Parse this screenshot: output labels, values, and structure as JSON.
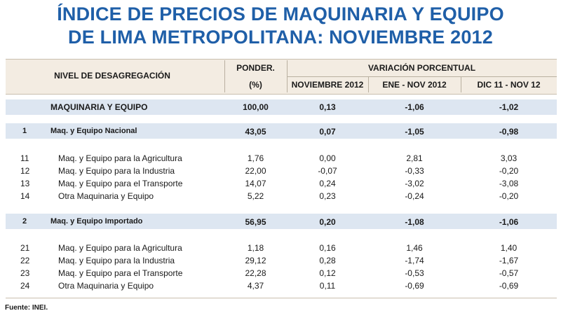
{
  "title": {
    "line1": "ÍNDICE DE PRECIOS DE MAQUINARIA Y EQUIPO",
    "line2": "DE LIMA METROPOLITANA: NOVIEMBRE 2012"
  },
  "header": {
    "nivel": "NIVEL DE DESAGREGACIÓN",
    "ponder": "PONDER.",
    "ponder_unit": "(%)",
    "variacion": "VARIACIÓN PORCENTUAL",
    "col1": "NOVIEMBRE 2012",
    "col2": "ENE - NOV 2012",
    "col3": "DIC 11 - NOV 12"
  },
  "total": {
    "label": "MAQUINARIA Y EQUIPO",
    "ponder": "100,00",
    "v1": "0,13",
    "v2": "-1,06",
    "v3": "-1,02"
  },
  "groups": [
    {
      "code": "1",
      "label": "Maq. y Equipo Nacional",
      "ponder": "43,05",
      "v1": "0,07",
      "v2": "-1,05",
      "v3": "-0,98",
      "rows": [
        {
          "code": "11",
          "label": "Maq. y Equipo para la Agricultura",
          "ponder": "1,76",
          "v1": "0,00",
          "v2": "2,81",
          "v3": "3,03"
        },
        {
          "code": "12",
          "label": "Maq. y Equipo para la Industria",
          "ponder": "22,00",
          "v1": "-0,07",
          "v2": "-0,33",
          "v3": "-0,20"
        },
        {
          "code": "13",
          "label": "Maq. y Equipo para el Transporte",
          "ponder": "14,07",
          "v1": "0,24",
          "v2": "-3,02",
          "v3": "-3,08"
        },
        {
          "code": "14",
          "label": "Otra Maquinaria  y Equipo",
          "ponder": "5,22",
          "v1": "0,23",
          "v2": "-0,24",
          "v3": "-0,20"
        }
      ]
    },
    {
      "code": "2",
      "label": "Maq. y Equipo Importado",
      "ponder": "56,95",
      "v1": "0,20",
      "v2": "-1,08",
      "v3": "-1,06",
      "rows": [
        {
          "code": "21",
          "label": "Maq. y Equipo para la Agricultura",
          "ponder": "1,18",
          "v1": "0,16",
          "v2": "1,46",
          "v3": "1,40"
        },
        {
          "code": "22",
          "label": "Maq. y Equipo para la Industria",
          "ponder": "29,12",
          "v1": "0,28",
          "v2": "-1,74",
          "v3": "-1,67"
        },
        {
          "code": "23",
          "label": "Maq. y Equipo para el Transporte",
          "ponder": "22,28",
          "v1": "0,12",
          "v2": "-0,53",
          "v3": "-0,57"
        },
        {
          "code": "24",
          "label": "Otra Maquinaria  y Equipo",
          "ponder": "4,37",
          "v1": "0,11",
          "v2": "-0,69",
          "v3": "-0,69"
        }
      ]
    }
  ],
  "footer": "Fuente: INEI."
}
